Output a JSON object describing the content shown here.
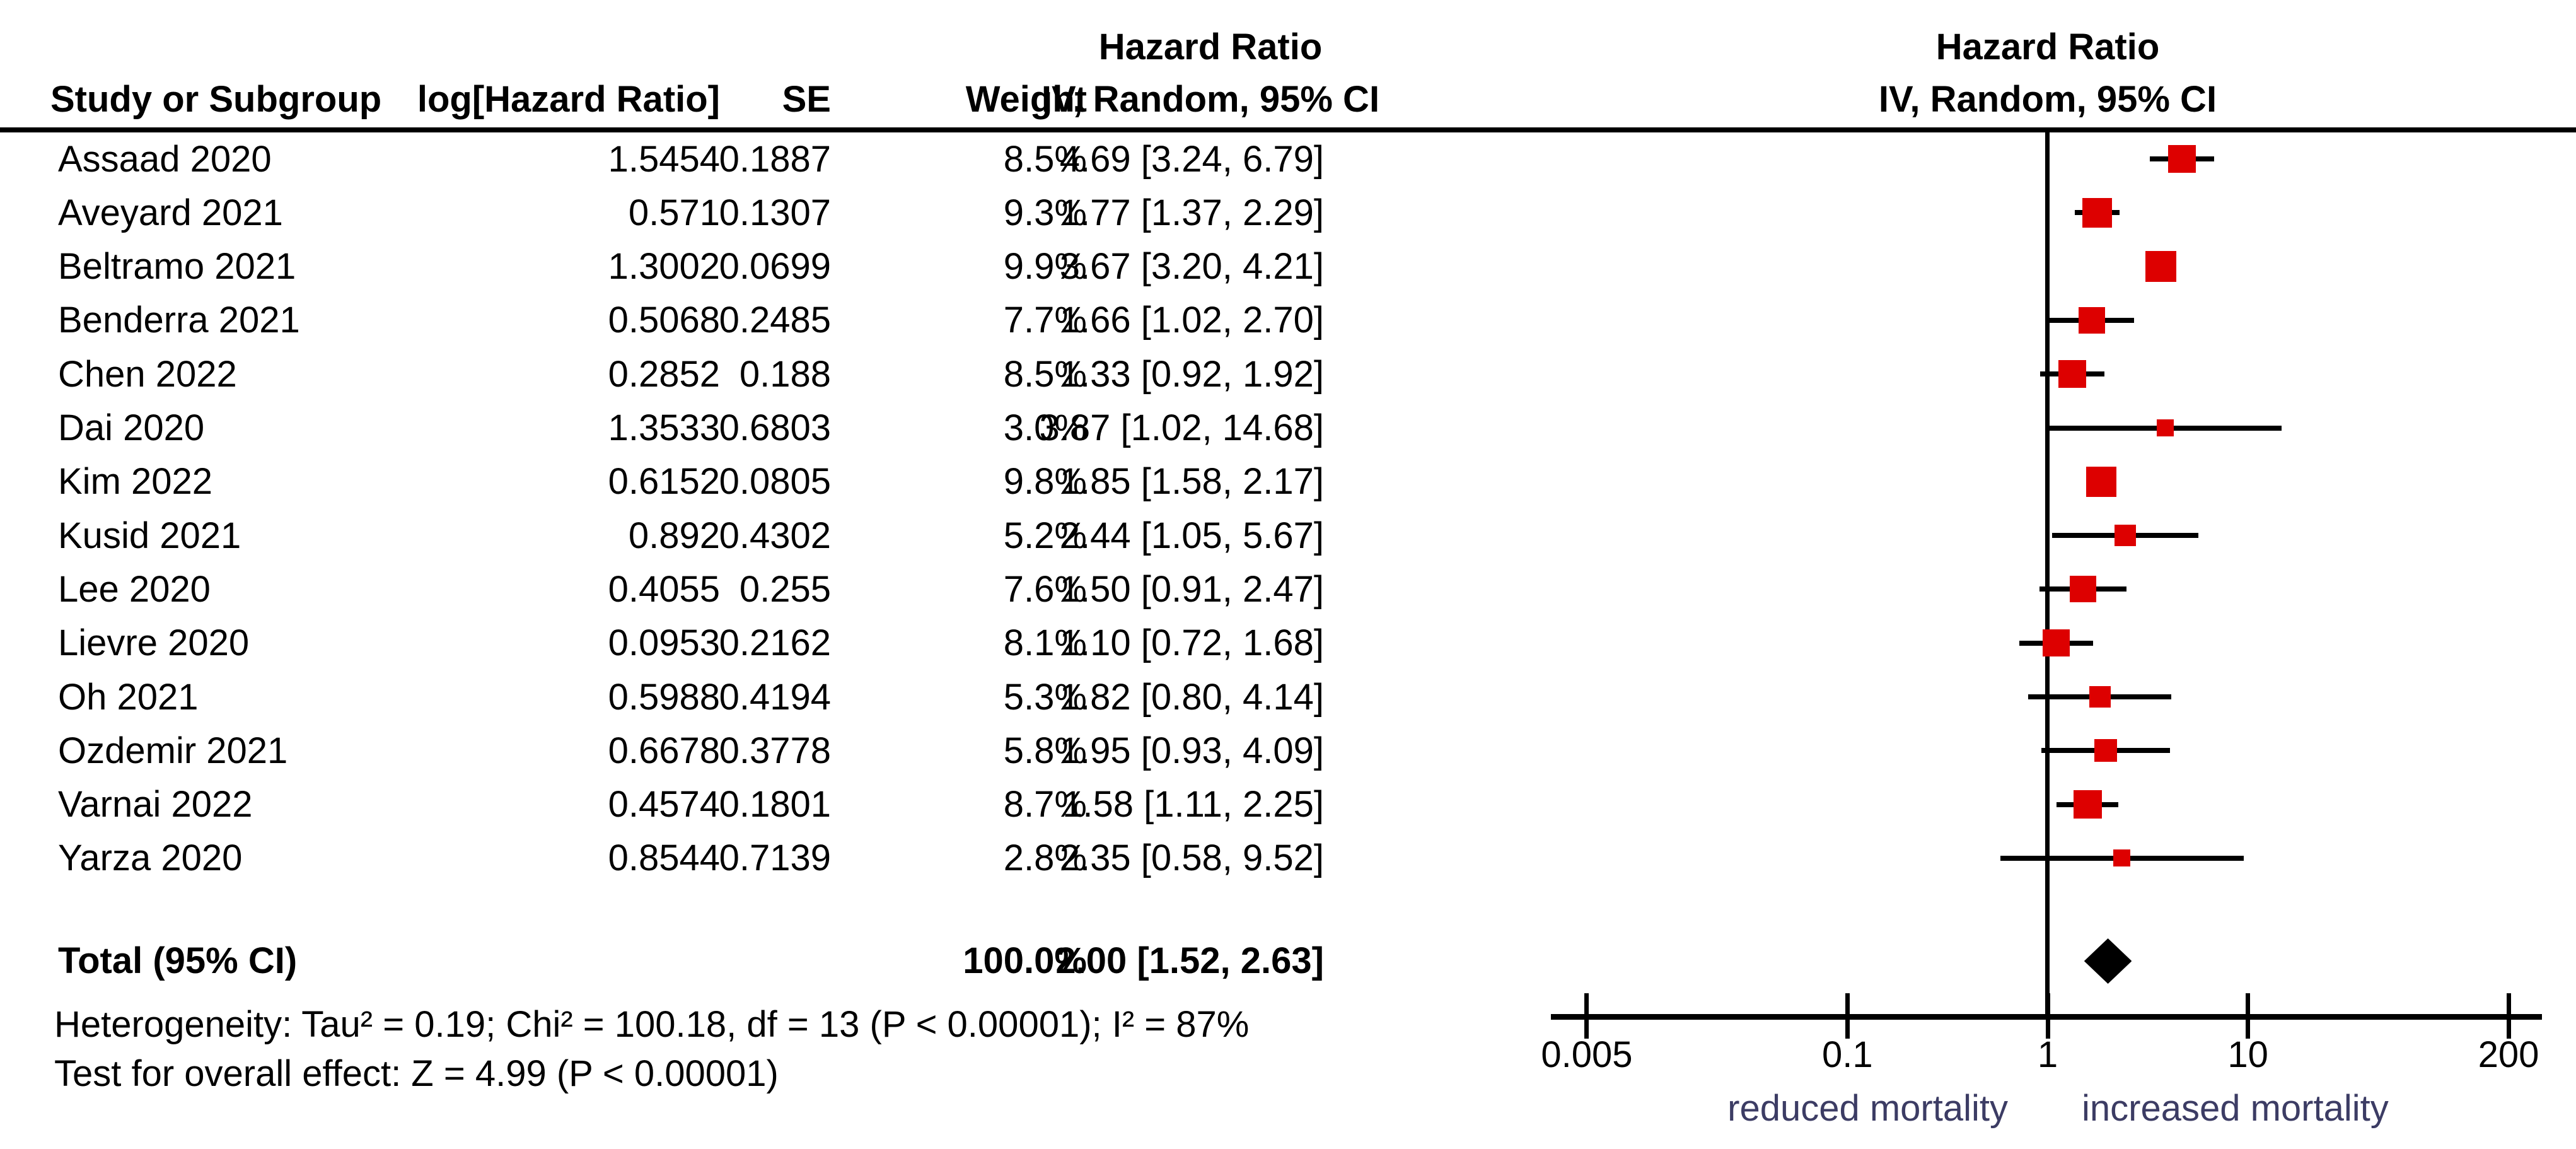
{
  "header": {
    "study": "Study or Subgroup",
    "log_hr": "log[Hazard Ratio]",
    "se": "SE",
    "weight": "Weight",
    "effect_line1": "Hazard Ratio",
    "effect_line2": "IV, Random, 95% CI",
    "plot_line1": "Hazard Ratio",
    "plot_line2": "IV, Random, 95% CI"
  },
  "total_row": {
    "label": "Total (95% CI)",
    "weight_text": "100.0%",
    "ci_text": "2.00 [1.52, 2.63]"
  },
  "footer": {
    "heterogeneity": "Heterogeneity: Tau² = 0.19; Chi² = 100.18, df = 13 (P < 0.00001); I² = 87%",
    "overall_effect": "Test for overall effect: Z = 4.99 (P < 0.00001)"
  },
  "axis": {
    "tick_labels": [
      "0.005",
      "0.1",
      "1",
      "10",
      "200"
    ],
    "left_label": "reduced mortality",
    "right_label": "increased mortality"
  },
  "colors": {
    "marker_red": "#dd0000",
    "diamond_black": "#000000",
    "ci_line_black": "#000000",
    "axis_label_blue": "#3c3c64"
  },
  "chart_data": {
    "type": "scatter",
    "subtype": "forest_plot",
    "effect_measure": "Hazard Ratio",
    "model": "IV, Random, 95% CI",
    "x_scale": "log",
    "x_min": 0.005,
    "x_max": 200,
    "x_ticks": [
      0.005,
      0.1,
      1,
      10,
      200
    ],
    "x_axis_labels": {
      "left": "reduced mortality",
      "right": "increased mortality"
    },
    "studies": [
      {
        "name": "Assaad 2020",
        "log_hr_text": "1.5454",
        "se_text": "0.1887",
        "weight_text": "8.5%",
        "ci_text": "4.69 [3.24, 6.79]",
        "weight_pct": 8.5,
        "hr": 4.69,
        "ci_low": 3.24,
        "ci_high": 6.79
      },
      {
        "name": "Aveyard 2021",
        "log_hr_text": "0.571",
        "se_text": "0.1307",
        "weight_text": "9.3%",
        "ci_text": "1.77 [1.37, 2.29]",
        "weight_pct": 9.3,
        "hr": 1.77,
        "ci_low": 1.37,
        "ci_high": 2.29
      },
      {
        "name": "Beltramo 2021",
        "log_hr_text": "1.3002",
        "se_text": "0.0699",
        "weight_text": "9.9%",
        "ci_text": "3.67 [3.20, 4.21]",
        "weight_pct": 9.9,
        "hr": 3.67,
        "ci_low": 3.2,
        "ci_high": 4.21
      },
      {
        "name": "Benderra 2021",
        "log_hr_text": "0.5068",
        "se_text": "0.2485",
        "weight_text": "7.7%",
        "ci_text": "1.66 [1.02, 2.70]",
        "weight_pct": 7.7,
        "hr": 1.66,
        "ci_low": 1.02,
        "ci_high": 2.7
      },
      {
        "name": "Chen 2022",
        "log_hr_text": "0.2852",
        "se_text": "0.188",
        "weight_text": "8.5%",
        "ci_text": "1.33 [0.92, 1.92]",
        "weight_pct": 8.5,
        "hr": 1.33,
        "ci_low": 0.92,
        "ci_high": 1.92
      },
      {
        "name": "Dai 2020",
        "log_hr_text": "1.3533",
        "se_text": "0.6803",
        "weight_text": "3.0%",
        "ci_text": "3.87 [1.02, 14.68]",
        "weight_pct": 3.0,
        "hr": 3.87,
        "ci_low": 1.02,
        "ci_high": 14.68
      },
      {
        "name": "Kim 2022",
        "log_hr_text": "0.6152",
        "se_text": "0.0805",
        "weight_text": "9.8%",
        "ci_text": "1.85 [1.58, 2.17]",
        "weight_pct": 9.8,
        "hr": 1.85,
        "ci_low": 1.58,
        "ci_high": 2.17
      },
      {
        "name": "Kusid 2021",
        "log_hr_text": "0.892",
        "se_text": "0.4302",
        "weight_text": "5.2%",
        "ci_text": "2.44 [1.05, 5.67]",
        "weight_pct": 5.2,
        "hr": 2.44,
        "ci_low": 1.05,
        "ci_high": 5.67
      },
      {
        "name": "Lee 2020",
        "log_hr_text": "0.4055",
        "se_text": "0.255",
        "weight_text": "7.6%",
        "ci_text": "1.50 [0.91, 2.47]",
        "weight_pct": 7.6,
        "hr": 1.5,
        "ci_low": 0.91,
        "ci_high": 2.47
      },
      {
        "name": "Lievre 2020",
        "log_hr_text": "0.0953",
        "se_text": "0.2162",
        "weight_text": "8.1%",
        "ci_text": "1.10 [0.72, 1.68]",
        "weight_pct": 8.1,
        "hr": 1.1,
        "ci_low": 0.72,
        "ci_high": 1.68
      },
      {
        "name": "Oh 2021",
        "log_hr_text": "0.5988",
        "se_text": "0.4194",
        "weight_text": "5.3%",
        "ci_text": "1.82 [0.80, 4.14]",
        "weight_pct": 5.3,
        "hr": 1.82,
        "ci_low": 0.8,
        "ci_high": 4.14
      },
      {
        "name": "Ozdemir 2021",
        "log_hr_text": "0.6678",
        "se_text": "0.3778",
        "weight_text": "5.8%",
        "ci_text": "1.95 [0.93, 4.09]",
        "weight_pct": 5.8,
        "hr": 1.95,
        "ci_low": 0.93,
        "ci_high": 4.09
      },
      {
        "name": "Varnai 2022",
        "log_hr_text": "0.4574",
        "se_text": "0.1801",
        "weight_text": "8.7%",
        "ci_text": "1.58 [1.11, 2.25]",
        "weight_pct": 8.7,
        "hr": 1.58,
        "ci_low": 1.11,
        "ci_high": 2.25
      },
      {
        "name": "Yarza 2020",
        "log_hr_text": "0.8544",
        "se_text": "0.7139",
        "weight_text": "2.8%",
        "ci_text": "2.35 [0.58, 9.52]",
        "weight_pct": 2.8,
        "hr": 2.35,
        "ci_low": 0.58,
        "ci_high": 9.52
      }
    ],
    "total": {
      "name": "Total (95% CI)",
      "weight_pct": 100.0,
      "hr": 2.0,
      "ci_low": 1.52,
      "ci_high": 2.63
    },
    "heterogeneity": {
      "tau2": 0.19,
      "chi2": 100.18,
      "df": 13,
      "p": "< 0.00001",
      "i2_pct": 87
    },
    "overall_effect": {
      "z": 4.99,
      "p": "< 0.00001"
    }
  }
}
